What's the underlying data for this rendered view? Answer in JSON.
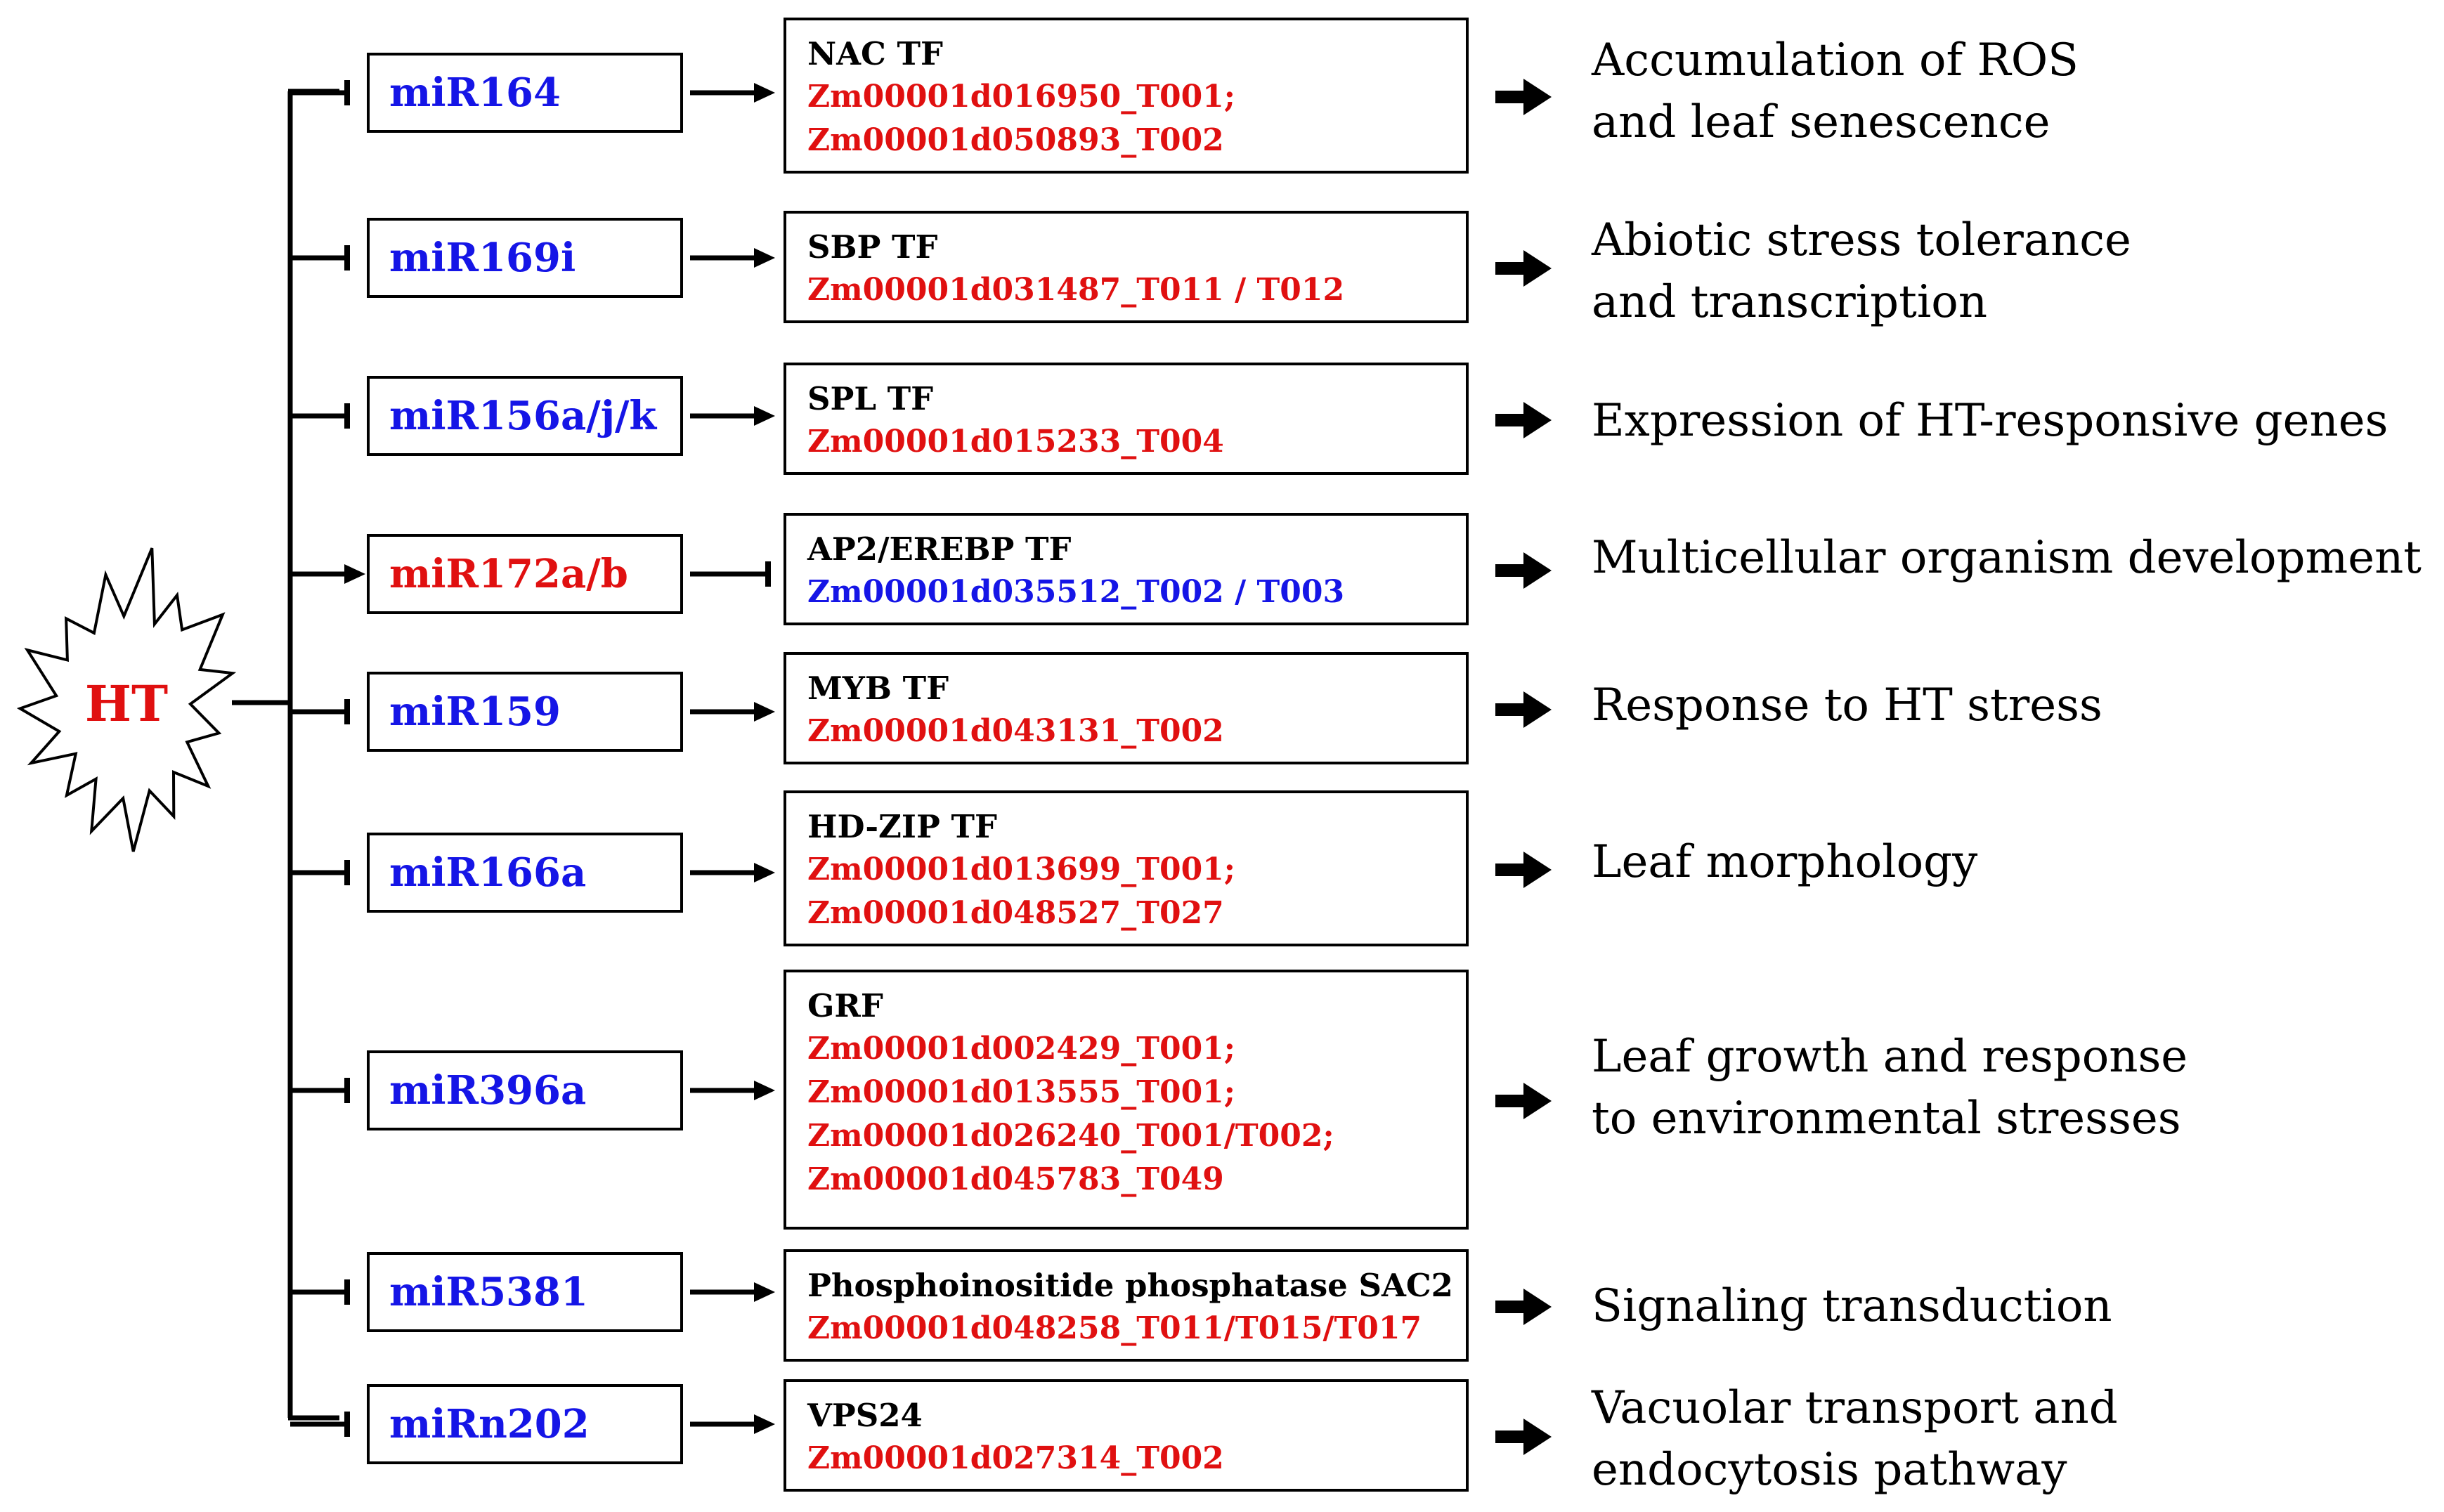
{
  "stimulus": "HT",
  "rows": [
    {
      "mirna": "miR164",
      "regulation": "down",
      "target": "NAC TF",
      "genes": [
        "Zm00001d016950_T001;",
        "Zm00001d050893_T002"
      ],
      "gene_color": "red",
      "function": [
        "Accumulation of ROS",
        "and leaf senescence"
      ]
    },
    {
      "mirna": "miR169i",
      "regulation": "down",
      "target": "SBP TF",
      "genes": [
        "Zm00001d031487_T011 / T012"
      ],
      "gene_color": "red",
      "function": [
        "Abiotic stress tolerance",
        "and transcription"
      ]
    },
    {
      "mirna": "miR156a/j/k",
      "regulation": "down",
      "target": "SPL TF",
      "genes": [
        "Zm00001d015233_T004"
      ],
      "gene_color": "red",
      "function": [
        "Expression of HT-responsive genes"
      ]
    },
    {
      "mirna": "miR172a/b",
      "regulation": "up",
      "target": "AP2/EREBP TF",
      "genes": [
        "Zm00001d035512_T002 / T003"
      ],
      "gene_color": "blue",
      "function": [
        "Multicellular organism development"
      ]
    },
    {
      "mirna": "miR159",
      "regulation": "down",
      "target": "MYB TF",
      "genes": [
        "Zm00001d043131_T002"
      ],
      "gene_color": "red",
      "function": [
        "Response to HT stress"
      ]
    },
    {
      "mirna": "miR166a",
      "regulation": "down",
      "target": "HD-ZIP TF",
      "genes": [
        "Zm00001d013699_T001;",
        "Zm00001d048527_T027"
      ],
      "gene_color": "red",
      "function": [
        "Leaf morphology"
      ]
    },
    {
      "mirna": "miR396a",
      "regulation": "down",
      "target": "GRF",
      "genes": [
        "Zm00001d002429_T001;",
        "Zm00001d013555_T001;",
        "Zm00001d026240_T001/T002;",
        "Zm00001d045783_T049"
      ],
      "gene_color": "red",
      "function": [
        "Leaf growth and response",
        "to environmental stresses"
      ]
    },
    {
      "mirna": "miR5381",
      "regulation": "down",
      "target": "Phosphoinositide  phosphatase SAC2",
      "genes": [
        "Zm00001d048258_T011/T015/T017"
      ],
      "gene_color": "red",
      "function": [
        "Signaling transduction"
      ]
    },
    {
      "mirna": "miRn202",
      "regulation": "down",
      "target": "VPS24",
      "genes": [
        "Zm00001d027314_T002"
      ],
      "gene_color": "red",
      "function": [
        "Vacuolar transport and",
        "endocytosis pathway"
      ]
    }
  ],
  "colors": {
    "up": "#e01010",
    "down": "#1515e6",
    "line": "#000000"
  }
}
